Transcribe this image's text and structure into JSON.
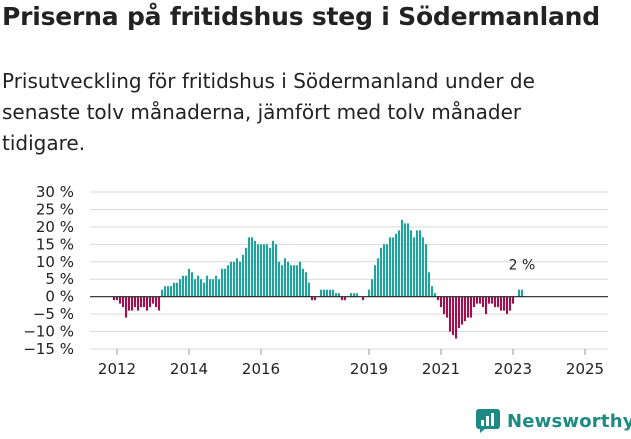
{
  "title": "Priserna på fritidshus steg i Södermanland",
  "subtitle": "Prisutveckling för fritidshus i Södermanland under de senaste tolv månaderna, jämfört med tolv månader tidigare.",
  "brand": {
    "name": "Newsworthy"
  },
  "colors": {
    "positive": "#1fa39a",
    "negative": "#a0104d",
    "grid": "#d9d9d9",
    "axis": "#222222",
    "brand": "#1d8b84"
  },
  "chart_data": {
    "type": "bar",
    "title": "Priserna på fritidshus steg i Södermanland",
    "xlabel": "",
    "ylabel": "",
    "ylim": [
      -15,
      30
    ],
    "yticks": [
      30,
      25,
      20,
      15,
      10,
      5,
      0,
      -5,
      -10,
      -15
    ],
    "ytick_labels": [
      "30 %",
      "25 %",
      "20 %",
      "15 %",
      "10 %",
      "5 %",
      "0 %",
      "−5 %",
      "−10 %",
      "−15 %"
    ],
    "x_start": {
      "year": 2011,
      "month": 12
    },
    "xticks": [
      {
        "label": "2012",
        "index": 1
      },
      {
        "label": "2014",
        "index": 25
      },
      {
        "label": "2016",
        "index": 49
      },
      {
        "label": "2019",
        "index": 85
      },
      {
        "label": "2021",
        "index": 109
      },
      {
        "label": "2023",
        "index": 133
      },
      {
        "label": "2025",
        "index": 157
      }
    ],
    "last_label": "2 %",
    "values": [
      -1,
      -1,
      -2,
      -3,
      -6,
      -4,
      -4,
      -3,
      -4,
      -3,
      -3,
      -4,
      -3,
      -2,
      -3,
      -4,
      2,
      3,
      3,
      3,
      4,
      4,
      5,
      6,
      6,
      8,
      7,
      5,
      6,
      5,
      4,
      6,
      5,
      5,
      6,
      5,
      8,
      8,
      9,
      10,
      10,
      11,
      10,
      12,
      14,
      17,
      17,
      16,
      15,
      15,
      15,
      15,
      14,
      16,
      15,
      10,
      9,
      11,
      10,
      9,
      9,
      9,
      10,
      8,
      7,
      4,
      -1,
      -1,
      0,
      2,
      2,
      2,
      2,
      2,
      1,
      1,
      -1,
      -1,
      0,
      1,
      1,
      1,
      0,
      -1,
      0,
      2,
      5,
      9,
      11,
      14,
      15,
      15,
      17,
      17,
      18,
      19,
      22,
      21,
      21,
      19,
      17,
      19,
      19,
      17,
      15,
      7,
      3,
      1,
      -1,
      -3,
      -5,
      -6,
      -10,
      -11,
      -12,
      -9,
      -8,
      -7,
      -6,
      -6,
      -3,
      -2,
      -2,
      -3,
      -5,
      -2,
      -2,
      -3,
      -3,
      -4,
      -4,
      -5,
      -4,
      -2,
      0,
      2,
      2
    ]
  }
}
